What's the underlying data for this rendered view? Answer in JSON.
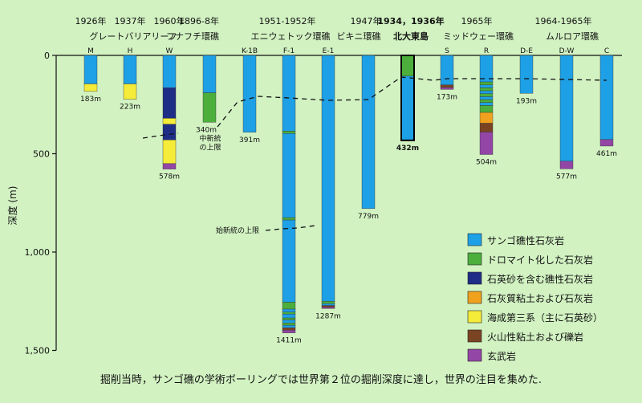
{
  "chart_data": {
    "type": "bar",
    "ylabel": "深度 (m)",
    "ylim": [
      0,
      1500
    ],
    "y_ticks": [
      {
        "value": 0,
        "label": "0"
      },
      {
        "value": 500,
        "label": "500"
      },
      {
        "value": 1000,
        "label": "1,000"
      },
      {
        "value": 1500,
        "label": "1,500"
      }
    ],
    "grid": false,
    "legend_position": "bottom-right",
    "colors": {
      "coral_limestone": "#1ea0e6",
      "dolomite": "#4caf3c",
      "quartz_sand_limestone": "#1e2e86",
      "marly_limestone": "#f0a21e",
      "tertiary_quartz_sand": "#f5ec3a",
      "volcanic_clay": "#7a4422",
      "basalt": "#9346a6",
      "highlight_text": "#e0201a",
      "background": "#d2f2c2"
    },
    "legend": [
      {
        "key": "coral_limestone",
        "label": "サンゴ礁性石灰岩"
      },
      {
        "key": "dolomite",
        "label": "ドロマイト化した石灰岩"
      },
      {
        "key": "quartz_sand_limestone",
        "label": "石英砂を含む礁性石灰岩"
      },
      {
        "key": "marly_limestone",
        "label": "石灰質粘土および石灰岩"
      },
      {
        "key": "tertiary_quartz_sand",
        "label": "海成第三系（主に石英砂）"
      },
      {
        "key": "volcanic_clay",
        "label": "火山性粘土および礫岩"
      },
      {
        "key": "basalt",
        "label": "玄武岩"
      }
    ],
    "sites": [
      {
        "year": "1926年",
        "name": "グレートバリアリーフ",
        "wells": [
          {
            "code": "M",
            "depth": 183,
            "depth_label": "183m",
            "layers": [
              {
                "from": 0,
                "to": 145,
                "type": "coral_limestone"
              },
              {
                "from": 145,
                "to": 183,
                "type": "tertiary_quartz_sand"
              }
            ]
          }
        ]
      },
      {
        "year": "1937年",
        "name": "",
        "wells": [
          {
            "code": "H",
            "depth": 223,
            "depth_label": "223m",
            "layers": [
              {
                "from": 0,
                "to": 145,
                "type": "coral_limestone"
              },
              {
                "from": 145,
                "to": 223,
                "type": "tertiary_quartz_sand"
              }
            ]
          }
        ]
      },
      {
        "year": "1960年",
        "name": "",
        "wells": [
          {
            "code": "W",
            "depth": 578,
            "depth_label": "578m",
            "layers": [
              {
                "from": 0,
                "to": 165,
                "type": "coral_limestone"
              },
              {
                "from": 165,
                "to": 320,
                "type": "quartz_sand_limestone"
              },
              {
                "from": 320,
                "to": 350,
                "type": "tertiary_quartz_sand"
              },
              {
                "from": 350,
                "to": 430,
                "type": "quartz_sand_limestone"
              },
              {
                "from": 430,
                "to": 550,
                "type": "tertiary_quartz_sand"
              },
              {
                "from": 550,
                "to": 578,
                "type": "basalt"
              }
            ]
          }
        ]
      },
      {
        "year": "1896-8年",
        "name": "フナフチ環礁",
        "wells": [
          {
            "code": "",
            "depth": 340,
            "depth_label": "340m",
            "layers": [
              {
                "from": 0,
                "to": 190,
                "type": "coral_limestone"
              },
              {
                "from": 190,
                "to": 340,
                "type": "dolomite"
              }
            ]
          }
        ]
      },
      {
        "year": "1951-1952年",
        "name": "エニウェトック環礁",
        "wells": [
          {
            "code": "K-1B",
            "depth": 391,
            "depth_label": "391m",
            "layers": [
              {
                "from": 0,
                "to": 391,
                "type": "coral_limestone"
              }
            ]
          },
          {
            "code": "F-1",
            "depth": 1411,
            "depth_label": "1411m",
            "layers": [
              {
                "from": 0,
                "to": 385,
                "type": "coral_limestone"
              },
              {
                "from": 385,
                "to": 397,
                "type": "dolomite"
              },
              {
                "from": 397,
                "to": 825,
                "type": "coral_limestone"
              },
              {
                "from": 825,
                "to": 837,
                "type": "dolomite"
              },
              {
                "from": 837,
                "to": 1255,
                "type": "coral_limestone"
              },
              {
                "from": 1255,
                "to": 1290,
                "type": "dolomite"
              },
              {
                "from": 1290,
                "to": 1305,
                "type": "coral_limestone"
              },
              {
                "from": 1305,
                "to": 1315,
                "type": "dolomite"
              },
              {
                "from": 1315,
                "to": 1335,
                "type": "coral_limestone"
              },
              {
                "from": 1335,
                "to": 1345,
                "type": "dolomite"
              },
              {
                "from": 1345,
                "to": 1360,
                "type": "coral_limestone"
              },
              {
                "from": 1360,
                "to": 1372,
                "type": "dolomite"
              },
              {
                "from": 1372,
                "to": 1385,
                "type": "coral_limestone"
              },
              {
                "from": 1385,
                "to": 1397,
                "type": "volcanic_clay"
              },
              {
                "from": 1397,
                "to": 1411,
                "type": "basalt"
              }
            ]
          },
          {
            "code": "E-1",
            "depth": 1287,
            "depth_label": "1287m",
            "layers": [
              {
                "from": 0,
                "to": 1250,
                "type": "coral_limestone"
              },
              {
                "from": 1250,
                "to": 1262,
                "type": "dolomite"
              },
              {
                "from": 1262,
                "to": 1272,
                "type": "coral_limestone"
              },
              {
                "from": 1272,
                "to": 1280,
                "type": "volcanic_clay"
              },
              {
                "from": 1280,
                "to": 1287,
                "type": "basalt"
              }
            ]
          }
        ]
      },
      {
        "year": "1947年",
        "name": "ビキニ環礁",
        "wells": [
          {
            "code": "",
            "depth": 779,
            "depth_label": "779m",
            "layers": [
              {
                "from": 0,
                "to": 779,
                "type": "coral_limestone"
              }
            ]
          }
        ]
      },
      {
        "year": "1934，1936年",
        "name": "北大東島",
        "highlight": true,
        "wells": [
          {
            "code": "",
            "depth": 432,
            "depth_label": "432m",
            "outlined": true,
            "layers": [
              {
                "from": 0,
                "to": 105,
                "type": "dolomite"
              },
              {
                "from": 105,
                "to": 432,
                "type": "coral_limestone"
              }
            ]
          }
        ]
      },
      {
        "year": "1965年",
        "name": "ミッドウェー環礁",
        "wells": [
          {
            "code": "S",
            "depth": 173,
            "depth_label": "173m",
            "layers": [
              {
                "from": 0,
                "to": 150,
                "type": "coral_limestone"
              },
              {
                "from": 150,
                "to": 163,
                "type": "volcanic_clay"
              },
              {
                "from": 163,
                "to": 173,
                "type": "basalt"
              }
            ]
          },
          {
            "code": "R",
            "depth": 504,
            "depth_label": "504m",
            "layers": [
              {
                "from": 0,
                "to": 135,
                "type": "coral_limestone"
              },
              {
                "from": 135,
                "to": 150,
                "type": "dolomite"
              },
              {
                "from": 150,
                "to": 165,
                "type": "coral_limestone"
              },
              {
                "from": 165,
                "to": 180,
                "type": "dolomite"
              },
              {
                "from": 180,
                "to": 195,
                "type": "coral_limestone"
              },
              {
                "from": 195,
                "to": 210,
                "type": "dolomite"
              },
              {
                "from": 210,
                "to": 225,
                "type": "coral_limestone"
              },
              {
                "from": 225,
                "to": 240,
                "type": "dolomite"
              },
              {
                "from": 240,
                "to": 255,
                "type": "coral_limestone"
              },
              {
                "from": 255,
                "to": 290,
                "type": "dolomite"
              },
              {
                "from": 290,
                "to": 345,
                "type": "marly_limestone"
              },
              {
                "from": 345,
                "to": 390,
                "type": "volcanic_clay"
              },
              {
                "from": 390,
                "to": 504,
                "type": "basalt"
              }
            ]
          }
        ]
      },
      {
        "year": "",
        "name": "",
        "wells": [
          {
            "code": "D-E",
            "depth": 193,
            "depth_label": "193m",
            "layers": [
              {
                "from": 0,
                "to": 193,
                "type": "coral_limestone"
              }
            ]
          }
        ]
      },
      {
        "year": "1964-1965年",
        "name": "ムルロア環礁",
        "wells": [
          {
            "code": "D-W",
            "depth": 577,
            "depth_label": "577m",
            "layers": [
              {
                "from": 0,
                "to": 538,
                "type": "coral_limestone"
              },
              {
                "from": 538,
                "to": 577,
                "type": "basalt"
              }
            ]
          },
          {
            "code": "C",
            "depth": 461,
            "depth_label": "461m",
            "layers": [
              {
                "from": 0,
                "to": 428,
                "type": "coral_limestone"
              },
              {
                "from": 428,
                "to": 461,
                "type": "basalt"
              }
            ]
          }
        ]
      }
    ],
    "miocene_boundary": {
      "label_lines": [
        "中新統",
        "の上限"
      ]
    },
    "eocene_boundary": {
      "label": "始新統の上限"
    }
  },
  "caption": "掘削当時，サンゴ礁の学術ボーリングでは世界第２位の掘削深度に達し，世界の注目を集めた."
}
